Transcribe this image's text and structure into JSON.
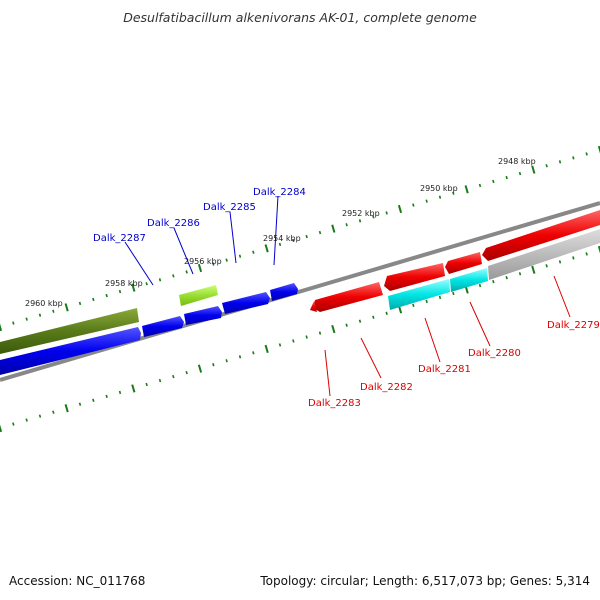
{
  "title": "Desulfatibacillum alkenivorans AK-01, complete genome",
  "footer": {
    "accession": "Accession: NC_011768",
    "stats": "Topology: circular; Length: 6,517,073 bp; Genes: 5,314"
  },
  "scale_ticks": [
    {
      "label": "2948 kbp"
    },
    {
      "label": "2950 kbp"
    },
    {
      "label": "2952 kbp"
    },
    {
      "label": "2954 kbp"
    },
    {
      "label": "2956 kbp"
    },
    {
      "label": "2958 kbp"
    },
    {
      "label": "2960 kbp"
    }
  ],
  "genes": [
    {
      "name": "Dalk_2279",
      "strand": "minus",
      "color": "#dd0000"
    },
    {
      "name": "Dalk_2280",
      "strand": "minus",
      "color": "#dd0000"
    },
    {
      "name": "Dalk_2281",
      "strand": "minus",
      "color": "#dd0000"
    },
    {
      "name": "Dalk_2282",
      "strand": "minus",
      "color": "#dd0000"
    },
    {
      "name": "Dalk_2283",
      "strand": "minus",
      "color": "#dd0000"
    },
    {
      "name": "Dalk_2284",
      "strand": "plus",
      "color": "#0000cc"
    },
    {
      "name": "Dalk_2285",
      "strand": "plus",
      "color": "#0000cc"
    },
    {
      "name": "Dalk_2286",
      "strand": "plus",
      "color": "#0000cc"
    },
    {
      "name": "Dalk_2287",
      "strand": "plus",
      "color": "#0000cc"
    }
  ],
  "colors": {
    "plus_strand": "#0000ee",
    "minus_strand": "#ee0000",
    "rna": "#00dddd",
    "other": "#bbbbbb",
    "green_dark": "#5a7a1a",
    "green_light": "#99dd33",
    "backbone": "#888888",
    "ticks": "#1a7a1a"
  }
}
